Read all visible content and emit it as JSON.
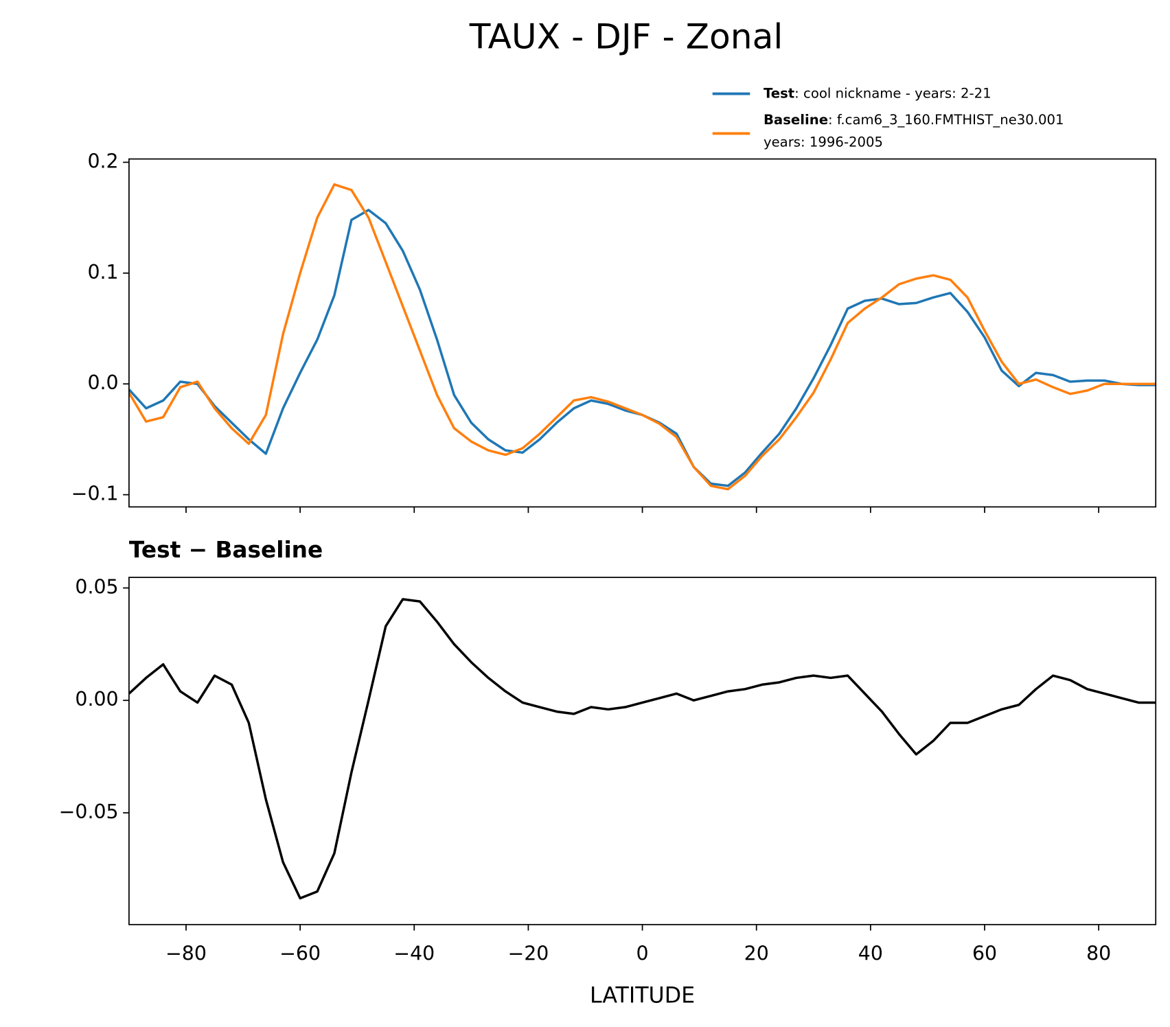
{
  "chart_data": [
    {
      "type": "line",
      "title": "TAUX - DJF - Zonal",
      "x": [
        -90,
        -87,
        -84,
        -81,
        -78,
        -75,
        -72,
        -69,
        -66,
        -63,
        -60,
        -57,
        -54,
        -51,
        -48,
        -45,
        -42,
        -39,
        -36,
        -33,
        -30,
        -27,
        -24,
        -21,
        -18,
        -15,
        -12,
        -9,
        -6,
        -3,
        0,
        3,
        6,
        9,
        12,
        15,
        18,
        21,
        24,
        27,
        30,
        33,
        36,
        39,
        42,
        45,
        48,
        51,
        54,
        57,
        60,
        63,
        66,
        69,
        72,
        75,
        78,
        81,
        84,
        87,
        90
      ],
      "series": [
        {
          "name": "Test",
          "label": [
            ": cool nickname - years: 2-21"
          ],
          "color": "#1f77b4",
          "values": [
            -0.005,
            -0.022,
            -0.015,
            0.002,
            0.0,
            -0.02,
            -0.035,
            -0.05,
            -0.063,
            -0.022,
            0.01,
            0.04,
            0.08,
            0.148,
            0.157,
            0.145,
            0.12,
            0.085,
            0.04,
            -0.01,
            -0.035,
            -0.05,
            -0.06,
            -0.062,
            -0.05,
            -0.035,
            -0.022,
            -0.015,
            -0.018,
            -0.024,
            -0.028,
            -0.035,
            -0.045,
            -0.075,
            -0.09,
            -0.092,
            -0.08,
            -0.062,
            -0.045,
            -0.022,
            0.005,
            0.035,
            0.068,
            0.075,
            0.077,
            0.072,
            0.073,
            0.078,
            0.082,
            0.065,
            0.042,
            0.012,
            -0.002,
            0.01,
            0.008,
            0.002,
            0.003,
            0.003,
            0.0,
            -0.001,
            -0.001
          ]
        },
        {
          "name": "Baseline",
          "label": [
            ": f.cam6_3_160.FMTHIST_ne30.001",
            "years: 1996-2005"
          ],
          "color": "#ff7f0e",
          "values": [
            -0.008,
            -0.034,
            -0.03,
            -0.003,
            0.002,
            -0.022,
            -0.04,
            -0.054,
            -0.028,
            0.045,
            0.1,
            0.15,
            0.18,
            0.175,
            0.15,
            0.11,
            0.07,
            0.03,
            -0.01,
            -0.04,
            -0.052,
            -0.06,
            -0.064,
            -0.058,
            -0.045,
            -0.03,
            -0.015,
            -0.012,
            -0.016,
            -0.022,
            -0.028,
            -0.036,
            -0.048,
            -0.075,
            -0.092,
            -0.095,
            -0.083,
            -0.065,
            -0.05,
            -0.03,
            -0.008,
            0.022,
            0.055,
            0.068,
            0.078,
            0.09,
            0.095,
            0.098,
            0.094,
            0.078,
            0.048,
            0.02,
            0.0,
            0.004,
            -0.003,
            -0.009,
            -0.006,
            0.0,
            0.0,
            0.0,
            0.0
          ]
        }
      ],
      "xlim": [
        -90,
        90
      ],
      "xticks": [
        {
          "value": -80,
          "label": "−80"
        },
        {
          "value": -60,
          "label": "−60"
        },
        {
          "value": -40,
          "label": "−40"
        },
        {
          "value": -20,
          "label": "−20"
        },
        0,
        20,
        40,
        60,
        80
      ],
      "ylim": [
        -0.111,
        0.203
      ],
      "yticks": [
        {
          "value": -0.1,
          "label": "−0.1"
        },
        {
          "value": 0,
          "label": "0.0"
        },
        0.1,
        0.2
      ]
    },
    {
      "type": "line",
      "title": "Test − Baseline",
      "xlabel": "LATITUDE",
      "x": [
        -90,
        -87,
        -84,
        -81,
        -78,
        -75,
        -72,
        -69,
        -66,
        -63,
        -60,
        -57,
        -54,
        -51,
        -48,
        -45,
        -42,
        -39,
        -36,
        -33,
        -30,
        -27,
        -24,
        -21,
        -18,
        -15,
        -12,
        -9,
        -6,
        -3,
        0,
        3,
        6,
        9,
        12,
        15,
        18,
        21,
        24,
        27,
        30,
        33,
        36,
        39,
        42,
        45,
        48,
        51,
        54,
        57,
        60,
        63,
        66,
        69,
        72,
        75,
        78,
        81,
        84,
        87,
        90
      ],
      "series": [
        {
          "color": "#000000",
          "values": [
            0.003,
            0.01,
            0.016,
            0.004,
            -0.001,
            0.011,
            0.007,
            -0.01,
            -0.044,
            -0.072,
            -0.088,
            -0.085,
            -0.068,
            -0.032,
            0.0,
            0.033,
            0.045,
            0.044,
            0.035,
            0.025,
            0.017,
            0.01,
            0.004,
            -0.001,
            -0.003,
            -0.005,
            -0.006,
            -0.003,
            -0.004,
            -0.003,
            -0.001,
            0.001,
            0.003,
            0.0,
            0.002,
            0.004,
            0.005,
            0.007,
            0.008,
            0.01,
            0.011,
            0.01,
            0.011,
            0.003,
            -0.005,
            -0.015,
            -0.024,
            -0.018,
            -0.01,
            -0.01,
            -0.007,
            -0.004,
            -0.002,
            0.005,
            0.011,
            0.009,
            0.005,
            0.003,
            0.001,
            -0.001,
            -0.001
          ]
        }
      ],
      "xlim": [
        -90,
        90
      ],
      "xticks": [
        {
          "value": -80,
          "label": "−80"
        },
        {
          "value": -60,
          "label": "−60"
        },
        {
          "value": -40,
          "label": "−40"
        },
        {
          "value": -20,
          "label": "−20"
        },
        0,
        20,
        40,
        60,
        80
      ],
      "ylim": [
        -0.0997,
        0.0547
      ],
      "yticks": [
        {
          "value": -0.05,
          "label": "−0.05"
        },
        {
          "value": 0,
          "label": "0.00"
        },
        0.05
      ]
    }
  ]
}
